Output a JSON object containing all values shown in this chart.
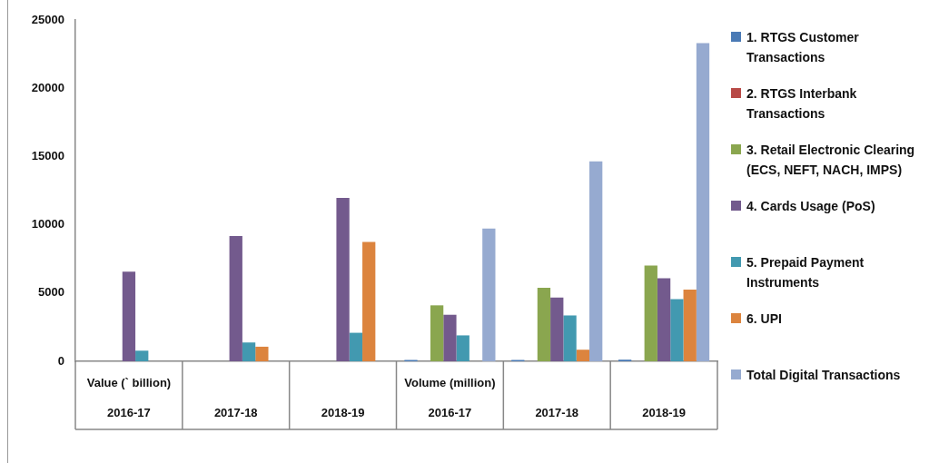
{
  "chart_data": {
    "type": "bar",
    "categories": [
      "2016-17",
      "2017-18",
      "2018-19",
      "2016-17",
      "2017-18",
      "2018-19"
    ],
    "annotations": [
      "Value (` billion)",
      "Volume (million)"
    ],
    "series": [
      {
        "name": "1. RTGS Customer Transactions",
        "color": "#4a7ab5",
        "values": [
          null,
          null,
          null,
          100,
          100,
          120
        ]
      },
      {
        "name": "2. RTGS Interbank Transactions",
        "color": "#b84a47",
        "values": [
          null,
          null,
          null,
          null,
          null,
          null
        ]
      },
      {
        "name": "3. Retail Electronic Clearing (ECS, NEFT, NACH, IMPS)",
        "color": "#8aa64f",
        "values": [
          null,
          null,
          null,
          4100,
          5380,
          7020
        ]
      },
      {
        "name": "4. Cards Usage (PoS)",
        "color": "#735a8d",
        "values": [
          6570,
          9170,
          11970,
          3410,
          4670,
          6090
        ]
      },
      {
        "name": "5. Prepaid Payment Instruments",
        "color": "#4299b0",
        "values": [
          780,
          1380,
          2090,
          1900,
          3360,
          4550
        ]
      },
      {
        "name": "6. UPI",
        "color": "#dc843e",
        "values": [
          null,
          1070,
          8740,
          null,
          850,
          5260
        ]
      },
      {
        "name": "Total Digital Transactions",
        "color": "#96aad0",
        "values": [
          null,
          null,
          null,
          9720,
          14640,
          23310
        ]
      }
    ],
    "ylim": [
      0,
      25000
    ],
    "yticks": [
      0,
      5000,
      10000,
      15000,
      20000,
      25000
    ],
    "grid": false,
    "legend": "right"
  }
}
